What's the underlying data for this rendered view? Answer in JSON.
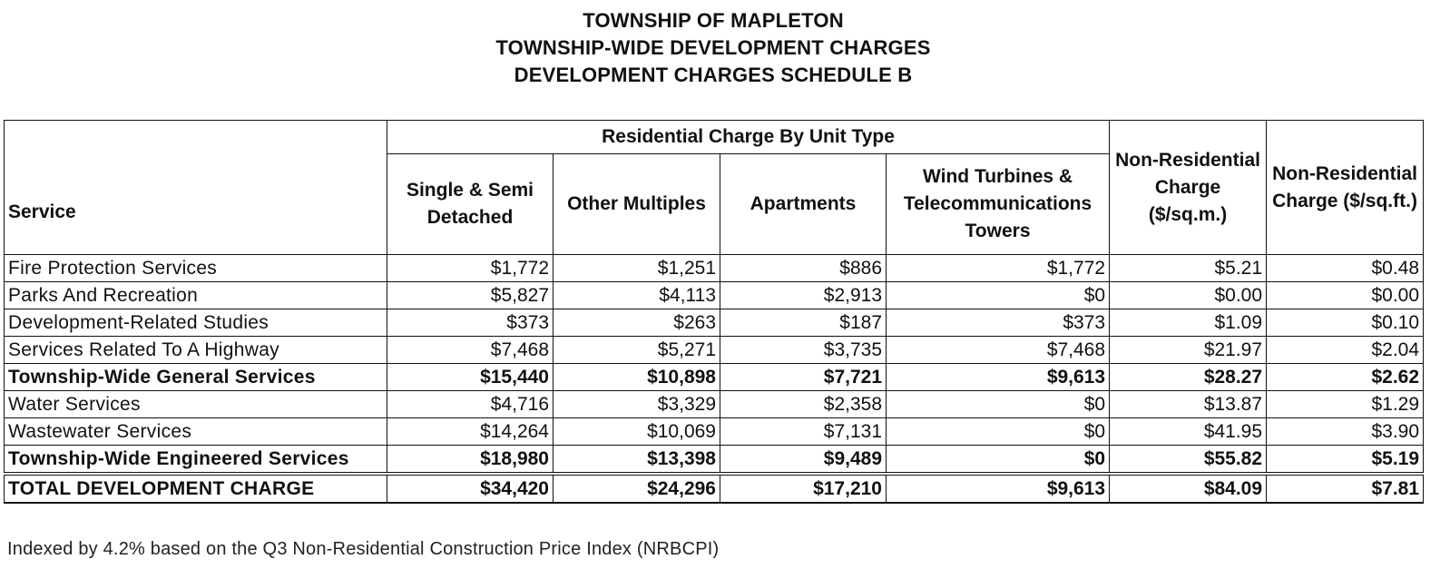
{
  "titles": {
    "line1": "TOWNSHIP OF MAPLETON",
    "line2": "TOWNSHIP-WIDE DEVELOPMENT CHARGES",
    "line3": "DEVELOPMENT CHARGES SCHEDULE B"
  },
  "table": {
    "header": {
      "service": "Service",
      "residential_group": "Residential Charge By Unit Type",
      "columns": [
        "Single & Semi Detached",
        "Other Multiples",
        "Apartments",
        "Wind Turbines & Telecommunications Towers",
        "Non-Residential Charge ($/sq.m.)",
        "Non-Residential Charge ($/sq.ft.)"
      ]
    },
    "rows": [
      {
        "service": "Fire Protection Services",
        "values": [
          "$1,772",
          "$1,251",
          "$886",
          "$1,772",
          "$5.21",
          "$0.48"
        ]
      },
      {
        "service": "Parks And Recreation",
        "values": [
          "$5,827",
          "$4,113",
          "$2,913",
          "$0",
          "$0.00",
          "$0.00"
        ]
      },
      {
        "service": "Development-Related Studies",
        "values": [
          "$373",
          "$263",
          "$187",
          "$373",
          "$1.09",
          "$0.10"
        ]
      },
      {
        "service": "Services Related To A Highway",
        "values": [
          "$7,468",
          "$5,271",
          "$3,735",
          "$7,468",
          "$21.97",
          "$2.04"
        ]
      },
      {
        "service": "Township-Wide General Services",
        "values": [
          "$15,440",
          "$10,898",
          "$7,721",
          "$9,613",
          "$28.27",
          "$2.62"
        ]
      },
      {
        "service": "Water Services",
        "values": [
          "$4,716",
          "$3,329",
          "$2,358",
          "$0",
          "$13.87",
          "$1.29"
        ]
      },
      {
        "service": "Wastewater Services",
        "values": [
          "$14,264",
          "$10,069",
          "$7,131",
          "$0",
          "$41.95",
          "$3.90"
        ]
      },
      {
        "service": "Township-Wide Engineered Services",
        "values": [
          "$18,980",
          "$13,398",
          "$9,489",
          "$0",
          "$55.82",
          "$5.19"
        ]
      },
      {
        "service": "TOTAL DEVELOPMENT CHARGE",
        "values": [
          "$34,420",
          "$24,296",
          "$17,210",
          "$9,613",
          "$84.09",
          "$7.81"
        ]
      }
    ]
  },
  "note": "Indexed by 4.2% based on the Q3 Non-Residential Construction Price Index (NRBCPI)"
}
